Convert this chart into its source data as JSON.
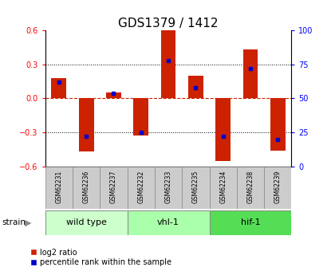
{
  "title": "GDS1379 / 1412",
  "samples": [
    "GSM62231",
    "GSM62236",
    "GSM62237",
    "GSM62232",
    "GSM62233",
    "GSM62235",
    "GSM62234",
    "GSM62238",
    "GSM62239"
  ],
  "log2_ratio": [
    0.18,
    -0.47,
    0.05,
    -0.33,
    0.62,
    0.2,
    -0.55,
    0.43,
    -0.46
  ],
  "percentile_rank": [
    62,
    22,
    54,
    25,
    78,
    58,
    22,
    72,
    20
  ],
  "groups": [
    {
      "label": "wild type",
      "start": 0,
      "end": 3,
      "color": "#ccffcc"
    },
    {
      "label": "vhl-1",
      "start": 3,
      "end": 6,
      "color": "#aaffaa"
    },
    {
      "label": "hif-1",
      "start": 6,
      "end": 9,
      "color": "#55dd55"
    }
  ],
  "ylim": [
    -0.6,
    0.6
  ],
  "yticks": [
    -0.6,
    -0.3,
    0,
    0.3,
    0.6
  ],
  "y2ticks": [
    0,
    25,
    50,
    75,
    100
  ],
  "bar_color": "#cc2200",
  "dot_color": "#0000cc",
  "zero_line_color": "#cc2200",
  "grid_color": "#000000",
  "title_fontsize": 11,
  "tick_fontsize": 7,
  "sample_fontsize": 5.5,
  "group_fontsize": 8,
  "legend_fontsize": 7,
  "sample_box_color": "#cccccc",
  "bg_color": "#ffffff"
}
